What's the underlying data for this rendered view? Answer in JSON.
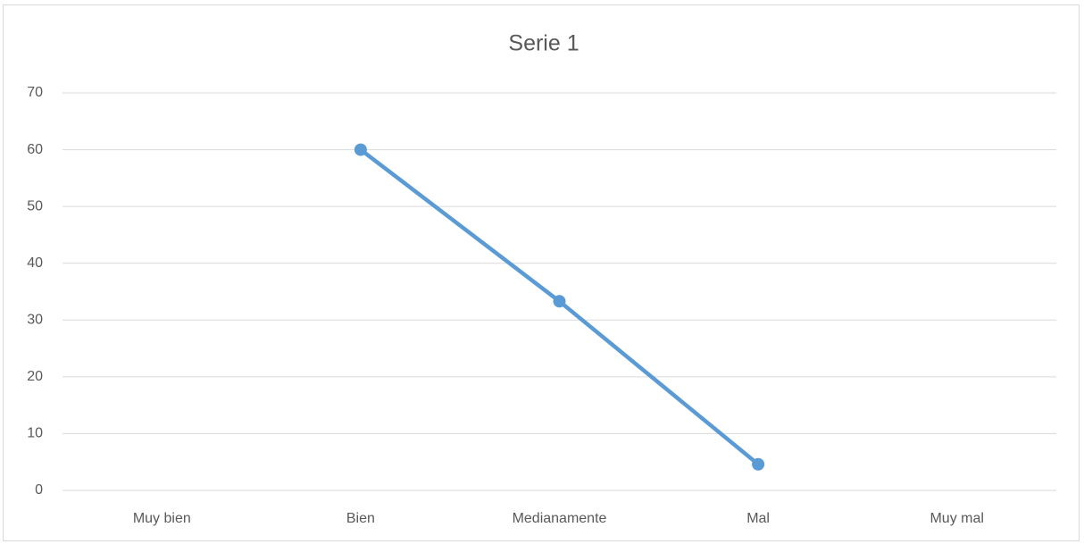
{
  "chart_data": {
    "type": "line",
    "title": "Serie 1",
    "categories": [
      "Muy bien",
      "Bien",
      "Medianamente",
      "Mal",
      "Muy mal"
    ],
    "values": [
      null,
      60,
      33.3,
      4.6,
      null
    ],
    "color": "#5b9bd5",
    "ylim": [
      0,
      70
    ],
    "yticks": [
      0,
      10,
      20,
      30,
      40,
      50,
      60,
      70
    ],
    "grid": true
  }
}
